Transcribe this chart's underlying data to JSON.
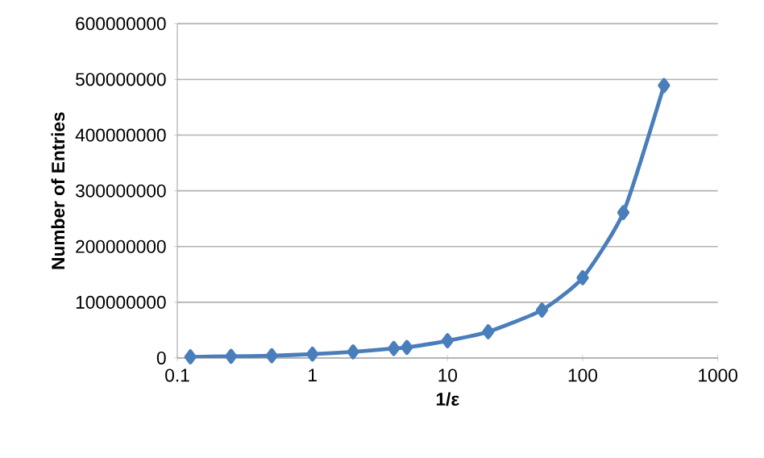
{
  "chart_data": {
    "type": "line",
    "xlabel": "1/ε",
    "ylabel": "Number of Entries",
    "x": [
      0.125,
      0.25,
      0.5,
      1,
      2,
      4,
      5,
      10,
      20,
      50,
      100,
      200,
      400
    ],
    "values": [
      2000000,
      3000000,
      4000000,
      7000000,
      11000000,
      17000000,
      19000000,
      31000000,
      47000000,
      86000000,
      144000000,
      261000000,
      489000000
    ],
    "color": "#4a7ebb",
    "xlim": [
      0.1,
      1000
    ],
    "xticks": [
      0.1,
      1,
      10,
      100,
      1000
    ],
    "ylim": [
      0,
      600000000
    ],
    "yticks": [
      0,
      100000000,
      200000000,
      300000000,
      400000000,
      500000000,
      600000000
    ],
    "log": "x",
    "grid": "y",
    "marker": "diamond",
    "line_style": "solid"
  }
}
